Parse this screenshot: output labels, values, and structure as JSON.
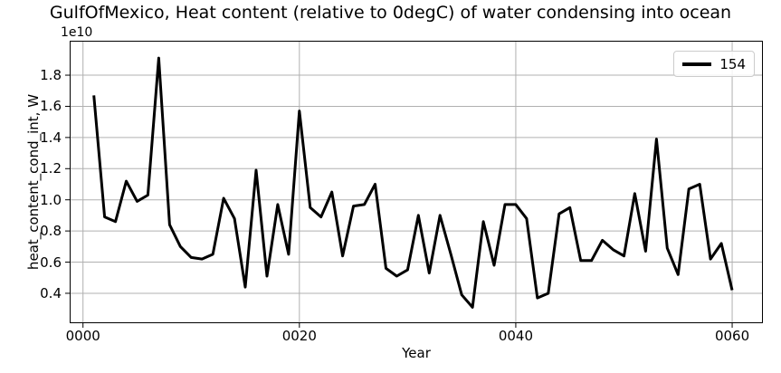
{
  "chart_data": {
    "type": "line",
    "title": "GulfOfMexico, Heat content (relative to 0degC) of water condensing into ocean",
    "xlabel": "Year",
    "ylabel": "heat_content_cond_int, W",
    "y_offset_label": "1e10",
    "grid": true,
    "legend_position": "upper right",
    "xlim": [
      -1.23,
      62.84
    ],
    "ylim": [
      0.208,
      2.021
    ],
    "x_ticks": {
      "values": [
        0,
        20,
        40,
        60
      ],
      "labels": [
        "0000",
        "0020",
        "0040",
        "0060"
      ]
    },
    "y_ticks": {
      "values": [
        0.4,
        0.6,
        0.8,
        1.0,
        1.2,
        1.4,
        1.6,
        1.8
      ],
      "labels": [
        "0.4",
        "0.6",
        "0.8",
        "1.0",
        "1.2",
        "1.4",
        "1.6",
        "1.8"
      ]
    },
    "value_unit": "1e10 W",
    "line_color": "#000000",
    "grid_color": "#b0b0b0",
    "series": [
      {
        "name": "154",
        "color": "#000000",
        "line_width": 3,
        "x": [
          1,
          2,
          3,
          4,
          5,
          6,
          7,
          8,
          9,
          10,
          11,
          12,
          13,
          14,
          15,
          16,
          17,
          18,
          19,
          20,
          21,
          22,
          23,
          24,
          25,
          26,
          27,
          28,
          29,
          30,
          31,
          32,
          33,
          34,
          35,
          36,
          37,
          38,
          39,
          40,
          41,
          42,
          43,
          44,
          45,
          46,
          47,
          48,
          49,
          50,
          51,
          52,
          53,
          54,
          55,
          56,
          57,
          58,
          59,
          60
        ],
        "y": [
          1.67,
          0.89,
          0.86,
          1.12,
          0.99,
          1.03,
          1.91,
          0.84,
          0.7,
          0.63,
          0.62,
          0.65,
          1.01,
          0.88,
          0.44,
          1.19,
          0.51,
          0.97,
          0.65,
          1.57,
          0.95,
          0.89,
          1.05,
          0.64,
          0.96,
          0.97,
          1.1,
          0.56,
          0.51,
          0.55,
          0.9,
          0.53,
          0.9,
          0.65,
          0.39,
          0.31,
          0.86,
          0.58,
          0.97,
          0.97,
          0.88,
          0.37,
          0.4,
          0.91,
          0.95,
          0.61,
          0.61,
          0.74,
          0.68,
          0.64,
          1.04,
          0.67,
          1.39,
          0.69,
          0.52,
          1.07,
          1.1,
          0.62,
          0.72,
          0.42
        ]
      }
    ]
  }
}
